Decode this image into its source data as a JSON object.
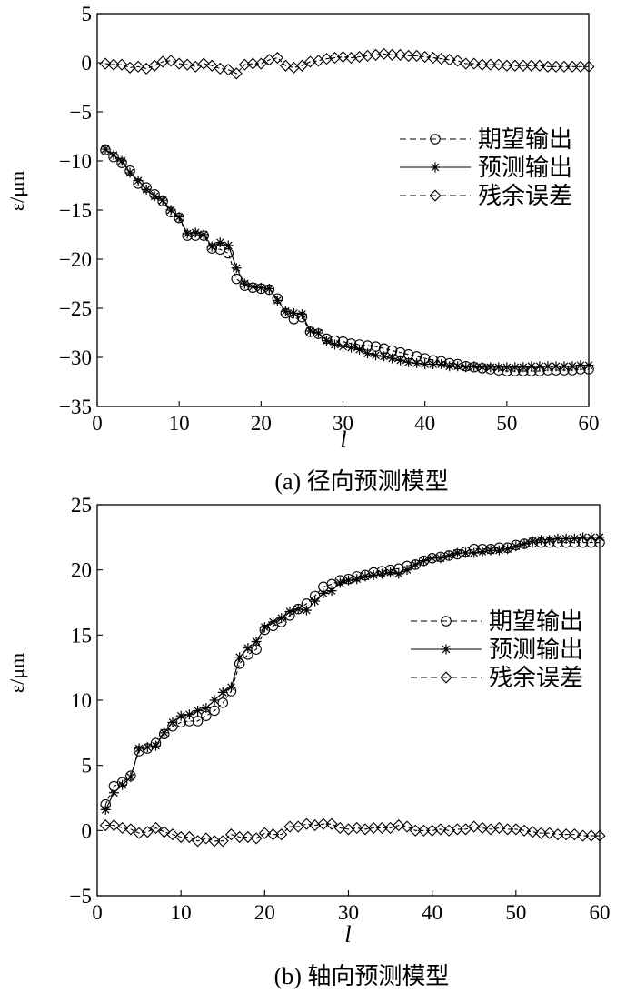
{
  "chart_data": [
    {
      "type": "line",
      "caption": "(a) 径向预测模型",
      "xlabel": "l",
      "ylabel": "ε/μm",
      "xlim": [
        0,
        60
      ],
      "ylim": [
        -35,
        5
      ],
      "xticks": [
        0,
        10,
        20,
        30,
        40,
        50,
        60
      ],
      "yticks": [
        5,
        0,
        -5,
        -10,
        -15,
        -20,
        -25,
        -30,
        -35
      ],
      "legend_position": "right",
      "x": [
        1,
        2,
        3,
        4,
        5,
        6,
        7,
        8,
        9,
        10,
        11,
        12,
        13,
        14,
        15,
        16,
        17,
        18,
        19,
        20,
        21,
        22,
        23,
        24,
        25,
        26,
        27,
        28,
        29,
        30,
        31,
        32,
        33,
        34,
        35,
        36,
        37,
        38,
        39,
        40,
        41,
        42,
        43,
        44,
        45,
        46,
        47,
        48,
        49,
        50,
        51,
        52,
        53,
        54,
        55,
        56,
        57,
        58,
        59,
        60
      ],
      "series": [
        {
          "name": "期望输出",
          "marker": "circle",
          "line": "dashed",
          "values": [
            -8.9,
            -9.6,
            -10.2,
            -11.0,
            -12.3,
            -12.7,
            -13.4,
            -14.1,
            -15.2,
            -15.8,
            -17.6,
            -17.6,
            -17.6,
            -18.9,
            -19.0,
            -19.4,
            -22.0,
            -22.7,
            -22.9,
            -23.0,
            -23.1,
            -24.0,
            -25.5,
            -26.1,
            -25.9,
            -27.4,
            -27.6,
            -28.1,
            -28.3,
            -28.4,
            -28.6,
            -28.7,
            -28.8,
            -28.9,
            -29.1,
            -29.3,
            -29.5,
            -29.7,
            -29.9,
            -30.1,
            -30.3,
            -30.4,
            -30.6,
            -30.7,
            -30.9,
            -31.0,
            -31.1,
            -31.2,
            -31.3,
            -31.4,
            -31.4,
            -31.4,
            -31.4,
            -31.4,
            -31.3,
            -31.3,
            -31.3,
            -31.3,
            -31.2,
            -31.2
          ]
        },
        {
          "name": "预测输出",
          "marker": "asterisk",
          "line": "solid",
          "values": [
            -8.8,
            -9.4,
            -10.0,
            -11.2,
            -12.0,
            -12.9,
            -13.6,
            -14.0,
            -15.0,
            -15.7,
            -17.4,
            -17.3,
            -17.5,
            -18.7,
            -18.3,
            -18.6,
            -20.9,
            -22.5,
            -22.8,
            -22.9,
            -23.0,
            -24.2,
            -25.3,
            -25.5,
            -25.6,
            -27.3,
            -27.5,
            -28.3,
            -28.7,
            -28.9,
            -29.0,
            -29.2,
            -29.6,
            -29.8,
            -29.9,
            -30.1,
            -30.3,
            -30.5,
            -30.6,
            -30.7,
            -30.7,
            -30.7,
            -30.9,
            -30.9,
            -31.0,
            -30.9,
            -31.0,
            -31.0,
            -31.0,
            -31.0,
            -31.0,
            -31.0,
            -30.9,
            -30.9,
            -30.9,
            -30.9,
            -30.9,
            -30.9,
            -30.8,
            -30.8
          ]
        },
        {
          "name": "残余误差",
          "marker": "diamond",
          "line": "dashed",
          "values": [
            -0.1,
            -0.2,
            -0.2,
            -0.5,
            -0.4,
            -0.6,
            -0.3,
            0.1,
            0.2,
            -0.1,
            -0.2,
            -0.4,
            -0.1,
            -0.3,
            -0.6,
            -0.7,
            -1.1,
            -0.2,
            -0.1,
            -0.1,
            0.3,
            0.5,
            -0.3,
            -0.5,
            -0.3,
            0.1,
            0.2,
            0.4,
            0.5,
            0.6,
            0.5,
            0.6,
            0.7,
            0.8,
            0.9,
            0.8,
            0.8,
            0.7,
            0.7,
            0.6,
            0.5,
            0.4,
            0.3,
            0.2,
            -0.1,
            -0.1,
            -0.2,
            -0.2,
            -0.2,
            -0.3,
            -0.3,
            -0.3,
            -0.3,
            -0.3,
            -0.4,
            -0.4,
            -0.4,
            -0.4,
            -0.4,
            -0.4
          ]
        }
      ]
    },
    {
      "type": "line",
      "caption": "(b) 轴向预测模型",
      "xlabel": "l",
      "ylabel": "ε/μm",
      "xlim": [
        0,
        60
      ],
      "ylim": [
        -5,
        25
      ],
      "xticks": [
        0,
        10,
        20,
        30,
        40,
        50,
        60
      ],
      "yticks": [
        25,
        20,
        15,
        10,
        5,
        0,
        -5
      ],
      "legend_position": "right",
      "x": [
        1,
        2,
        3,
        4,
        5,
        6,
        7,
        8,
        9,
        10,
        11,
        12,
        13,
        14,
        15,
        16,
        17,
        18,
        19,
        20,
        21,
        22,
        23,
        24,
        25,
        26,
        27,
        28,
        29,
        30,
        31,
        32,
        33,
        34,
        35,
        36,
        37,
        38,
        39,
        40,
        41,
        42,
        43,
        44,
        45,
        46,
        47,
        48,
        49,
        50,
        51,
        52,
        53,
        54,
        55,
        56,
        57,
        58,
        59,
        60
      ],
      "series": [
        {
          "name": "期望输出",
          "marker": "circle",
          "line": "dashed",
          "values": [
            2.0,
            3.4,
            3.7,
            4.2,
            6.1,
            6.3,
            6.7,
            7.4,
            8.0,
            8.3,
            8.4,
            8.4,
            8.8,
            9.2,
            9.8,
            10.7,
            12.8,
            13.5,
            13.9,
            15.4,
            15.7,
            16.0,
            16.5,
            17.0,
            17.4,
            18.0,
            18.7,
            18.9,
            19.2,
            19.3,
            19.5,
            19.6,
            19.8,
            19.9,
            20.0,
            20.1,
            20.3,
            20.4,
            20.7,
            20.9,
            21.0,
            21.1,
            21.2,
            21.4,
            21.6,
            21.6,
            21.6,
            21.7,
            21.7,
            21.9,
            22.0,
            22.1,
            22.1,
            22.1,
            22.1,
            22.1,
            22.1,
            22.1,
            22.1,
            22.1
          ]
        },
        {
          "name": "预测输出",
          "marker": "asterisk",
          "line": "solid",
          "values": [
            1.6,
            2.9,
            3.5,
            4.1,
            6.3,
            6.4,
            6.5,
            7.5,
            8.3,
            8.8,
            8.9,
            9.2,
            9.4,
            10.0,
            10.6,
            11.0,
            13.3,
            14.0,
            14.5,
            15.6,
            16.0,
            16.3,
            16.8,
            17.0,
            16.9,
            17.6,
            18.2,
            18.4,
            19.0,
            19.2,
            19.3,
            19.5,
            19.6,
            19.7,
            19.8,
            19.7,
            20.0,
            20.4,
            20.7,
            20.9,
            20.9,
            21.1,
            21.3,
            21.3,
            21.3,
            21.4,
            21.5,
            21.5,
            21.6,
            21.8,
            22.0,
            22.2,
            22.3,
            22.3,
            22.4,
            22.4,
            22.4,
            22.5,
            22.5,
            22.5
          ]
        },
        {
          "name": "残余误差",
          "marker": "diamond",
          "line": "dashed",
          "values": [
            0.4,
            0.4,
            0.2,
            0.1,
            -0.2,
            -0.1,
            0.2,
            -0.1,
            -0.3,
            -0.5,
            -0.5,
            -0.8,
            -0.6,
            -0.8,
            -0.8,
            -0.3,
            -0.5,
            -0.5,
            -0.6,
            -0.2,
            -0.3,
            -0.3,
            0.3,
            0.3,
            0.5,
            0.4,
            0.5,
            0.5,
            0.2,
            0.1,
            0.2,
            0.1,
            0.2,
            0.2,
            0.2,
            0.4,
            0.3,
            0.0,
            0.0,
            0.0,
            0.1,
            0.0,
            0.1,
            0.1,
            0.3,
            0.2,
            0.1,
            0.2,
            0.1,
            0.1,
            0.0,
            -0.1,
            -0.2,
            -0.2,
            -0.3,
            -0.3,
            -0.3,
            -0.4,
            -0.4,
            -0.4
          ]
        }
      ]
    }
  ]
}
